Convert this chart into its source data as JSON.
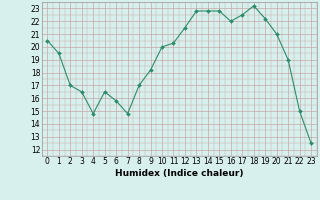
{
  "x": [
    0,
    1,
    2,
    3,
    4,
    5,
    6,
    7,
    8,
    9,
    10,
    11,
    12,
    13,
    14,
    15,
    16,
    17,
    18,
    19,
    20,
    21,
    22,
    23
  ],
  "y": [
    20.5,
    19.5,
    17.0,
    16.5,
    14.8,
    16.5,
    15.8,
    14.8,
    17.0,
    18.2,
    20.0,
    20.3,
    21.5,
    22.8,
    22.8,
    22.8,
    22.0,
    22.5,
    23.2,
    22.2,
    21.0,
    19.0,
    15.0,
    12.5
  ],
  "line_color": "#2E8B6A",
  "marker": "D",
  "marker_size": 2.0,
  "bg_color": "#D8F0ED",
  "grid_major_color": "#C4A8A8",
  "grid_minor_color": "#C4A8A8",
  "xlabel": "Humidex (Indice chaleur)",
  "ylim": [
    11.5,
    23.5
  ],
  "xlim": [
    -0.5,
    23.5
  ],
  "yticks": [
    12,
    13,
    14,
    15,
    16,
    17,
    18,
    19,
    20,
    21,
    22,
    23
  ],
  "xticks": [
    0,
    1,
    2,
    3,
    4,
    5,
    6,
    7,
    8,
    9,
    10,
    11,
    12,
    13,
    14,
    15,
    16,
    17,
    18,
    19,
    20,
    21,
    22,
    23
  ],
  "label_fontsize": 6.5,
  "tick_fontsize": 5.5,
  "line_width": 0.8
}
